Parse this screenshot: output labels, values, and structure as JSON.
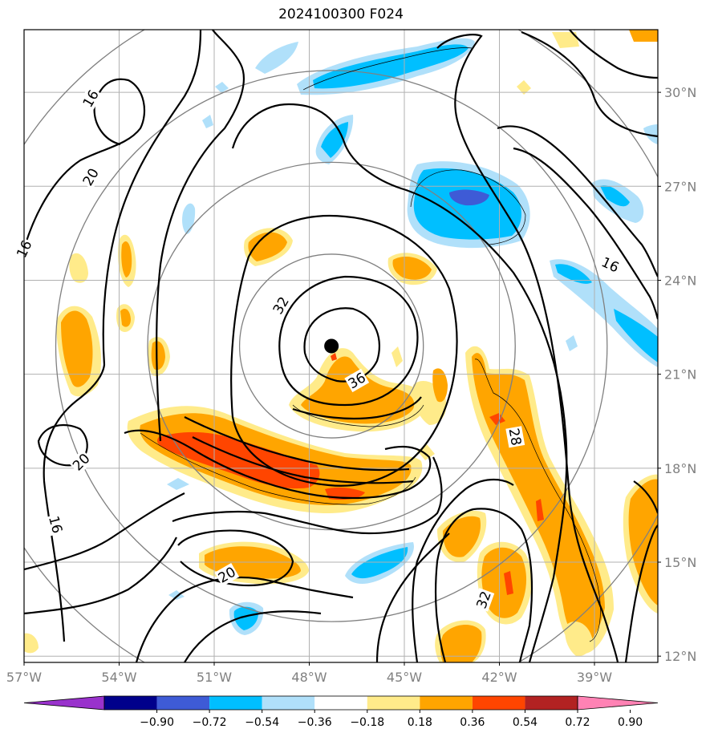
{
  "title": "2024100300 F024",
  "map": {
    "lon_range": [
      -57,
      -37
    ],
    "lat_range": [
      11.8,
      32
    ],
    "lon_ticks": [
      {
        "value": -57,
        "label": "57°W"
      },
      {
        "value": -54,
        "label": "54°W"
      },
      {
        "value": -51,
        "label": "51°W"
      },
      {
        "value": -48,
        "label": "48°W"
      },
      {
        "value": -45,
        "label": "45°W"
      },
      {
        "value": -42,
        "label": "42°W"
      },
      {
        "value": -39,
        "label": "39°W"
      }
    ],
    "lat_ticks": [
      {
        "value": 12,
        "label": "12°N"
      },
      {
        "value": 15,
        "label": "15°N"
      },
      {
        "value": 18,
        "label": "18°N"
      },
      {
        "value": 21,
        "label": "21°N"
      },
      {
        "value": 24,
        "label": "24°N"
      },
      {
        "value": 27,
        "label": "27°N"
      },
      {
        "value": 30,
        "label": "30°N"
      }
    ],
    "grid": true,
    "storm_center": {
      "lon": -47.3,
      "lat": 21.9
    },
    "range_rings_deg": [
      2.9,
      5.8,
      8.7,
      11.6
    ],
    "contour_labels": [
      {
        "text": "16",
        "lon": -54.9,
        "lat": 29.8,
        "angle": -60
      },
      {
        "text": "20",
        "lon": -54.9,
        "lat": 27.3,
        "angle": -60
      },
      {
        "text": "16",
        "lon": -57.0,
        "lat": 25.0,
        "angle": -65
      },
      {
        "text": "32",
        "lon": -48.9,
        "lat": 23.2,
        "angle": -60
      },
      {
        "text": "36",
        "lon": -46.5,
        "lat": 20.8,
        "angle": -30
      },
      {
        "text": "20",
        "lon": -55.2,
        "lat": 18.2,
        "angle": -45
      },
      {
        "text": "16",
        "lon": -56.0,
        "lat": 16.2,
        "angle": 75
      },
      {
        "text": "20",
        "lon": -50.6,
        "lat": 14.6,
        "angle": -30
      },
      {
        "text": "28",
        "lon": -41.5,
        "lat": 19.0,
        "angle": 80
      },
      {
        "text": "16",
        "lon": -38.5,
        "lat": 24.5,
        "angle": 25
      },
      {
        "text": "32",
        "lon": -42.5,
        "lat": 13.8,
        "angle": -70
      }
    ]
  },
  "colorbar": {
    "boundaries": [
      -0.9,
      -0.72,
      -0.54,
      -0.36,
      -0.18,
      0.18,
      0.36,
      0.54,
      0.72,
      0.9
    ],
    "labels": [
      "−0.90",
      "−0.72",
      "−0.54",
      "−0.36",
      "−0.18",
      "0.18",
      "0.36",
      "0.54",
      "0.72",
      "0.90"
    ],
    "colors": [
      "#9932cc",
      "#00008b",
      "#3e5bd6",
      "#00bfff",
      "#b0e0fa",
      "#ffffff",
      "#ffeb8a",
      "#ffa500",
      "#ff4500",
      "#b22222",
      "#ff82b4"
    ]
  }
}
